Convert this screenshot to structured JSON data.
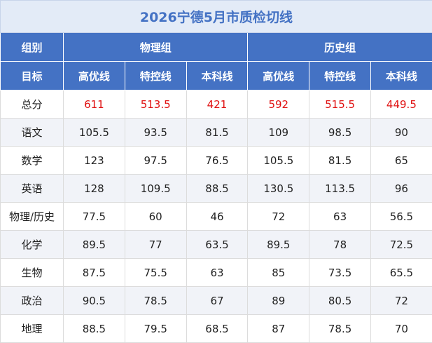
{
  "title": "2026宁德5月市质检切线",
  "header": {
    "group_label": "组别",
    "groups": [
      "物理组",
      "历史组"
    ],
    "target_label": "目标",
    "levels": [
      "高优线",
      "特控线",
      "本科线",
      "高优线",
      "特控线",
      "本科线"
    ]
  },
  "rows": [
    {
      "label": "总分",
      "values": [
        611,
        513.5,
        421,
        592,
        515.5,
        449.5
      ]
    },
    {
      "label": "语文",
      "values": [
        105.5,
        93.5,
        81.5,
        109,
        98.5,
        90
      ]
    },
    {
      "label": "数学",
      "values": [
        123,
        97.5,
        76.5,
        105.5,
        81.5,
        65
      ]
    },
    {
      "label": "英语",
      "values": [
        128,
        109.5,
        88.5,
        130.5,
        113.5,
        96
      ]
    },
    {
      "label": "物理/历史",
      "values": [
        77.5,
        60,
        46,
        72,
        63,
        56.5
      ]
    },
    {
      "label": "化学",
      "values": [
        89.5,
        77,
        63.5,
        89.5,
        78,
        72.5
      ]
    },
    {
      "label": "生物",
      "values": [
        87.5,
        75.5,
        63,
        85,
        73.5,
        65.5
      ]
    },
    {
      "label": "政治",
      "values": [
        90.5,
        78.5,
        67,
        89,
        80.5,
        72
      ]
    },
    {
      "label": "地理",
      "values": [
        88.5,
        79.5,
        68.5,
        87,
        78.5,
        70
      ]
    }
  ]
}
